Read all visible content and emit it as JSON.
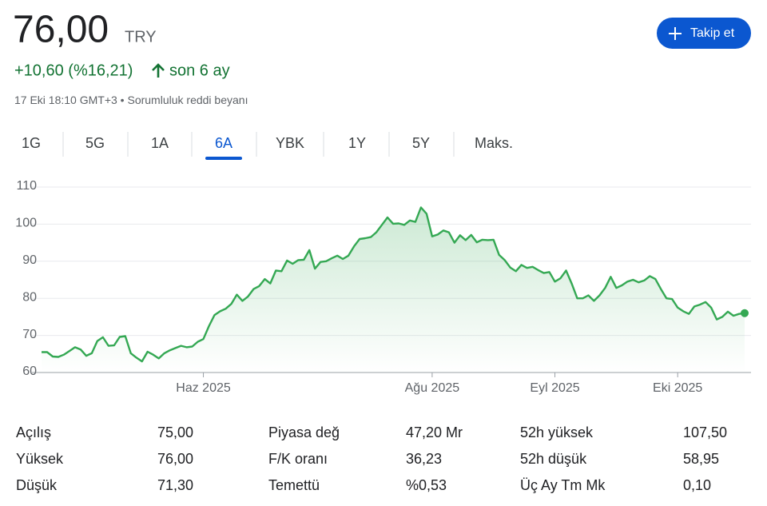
{
  "header": {
    "price": "76,00",
    "currency": "TRY",
    "change": "+10,60 (%16,21)",
    "period": "son 6 ay",
    "timestamp": "17 Eki 18:10 GMT+3",
    "disclaimer": "Sorumluluk reddi beyanı",
    "follow_button": "Takip et"
  },
  "tabs": {
    "items": [
      "1G",
      "5G",
      "1A",
      "6A",
      "YBK",
      "1Y",
      "5Y",
      "Maks."
    ],
    "selected": 3
  },
  "chart_data": {
    "type": "line",
    "color": "#34a853",
    "ylim": [
      60,
      110
    ],
    "yticks": [
      60,
      70,
      80,
      90,
      100,
      110
    ],
    "grid": true,
    "categories": [
      null,
      null,
      null,
      null,
      null,
      null,
      null,
      null,
      null,
      null,
      null,
      null,
      null,
      null,
      null,
      null,
      null,
      null,
      null,
      null,
      null,
      null,
      null,
      null,
      null,
      null,
      null,
      null,
      null,
      "Haz 2025",
      null,
      null,
      null,
      null,
      null,
      null,
      null,
      null,
      null,
      null,
      null,
      null,
      null,
      null,
      null,
      null,
      null,
      null,
      null,
      null,
      null,
      null,
      null,
      null,
      null,
      null,
      null,
      null,
      null,
      null,
      null,
      null,
      null,
      null,
      null,
      null,
      null,
      null,
      null,
      null,
      "Ağu 2025",
      null,
      null,
      null,
      null,
      null,
      null,
      null,
      null,
      null,
      null,
      null,
      null,
      null,
      null,
      null,
      null,
      null,
      null,
      null,
      null,
      null,
      "Eyl 2025",
      null,
      null,
      null,
      null,
      null,
      null,
      null,
      null,
      null,
      null,
      null,
      null,
      null,
      null,
      null,
      null,
      null,
      null,
      null,
      null,
      null,
      "Eki 2025",
      null,
      null,
      null,
      null,
      null,
      null,
      null,
      null,
      null,
      null,
      null,
      null
    ],
    "values": [
      65.5,
      65.5,
      64.3,
      64.2,
      64.8,
      65.8,
      66.8,
      66.2,
      64.5,
      65.2,
      68.5,
      69.5,
      67.2,
      67.3,
      69.6,
      69.8,
      65.2,
      64,
      63,
      65.6,
      64.8,
      63.8,
      65.2,
      66,
      66.6,
      67.2,
      66.8,
      67,
      68.3,
      69,
      72.5,
      75.5,
      76.5,
      77.2,
      78.5,
      81,
      79.3,
      80.5,
      82.5,
      83.3,
      85.2,
      84,
      87.5,
      87.3,
      90.2,
      89.3,
      90.3,
      90.4,
      93,
      88,
      89.8,
      90,
      90.8,
      91.5,
      90.6,
      91.5,
      94,
      96,
      96.2,
      96.5,
      97.8,
      99.8,
      101.8,
      100.1,
      100.2,
      99.8,
      101,
      100.6,
      104.5,
      102.8,
      96.7,
      97.2,
      98.3,
      97.8,
      95,
      97,
      95.7,
      97.1,
      95.1,
      95.8,
      95.7,
      95.8,
      91.7,
      90.3,
      88.3,
      87.3,
      89,
      88.2,
      88.5,
      87.6,
      86.8,
      87.1,
      84.5,
      85.4,
      87.5,
      84,
      80,
      80,
      80.8,
      79.3,
      80.8,
      82.8,
      85.8,
      82.8,
      83.5,
      84.5,
      85,
      84.3,
      84.8,
      86,
      85.2,
      82.5,
      80,
      79.8,
      77.5,
      76.5,
      75.8,
      77.8,
      78.3,
      79,
      77.5,
      74.3,
      75,
      76.4,
      75.3,
      75.8,
      76
    ]
  },
  "stats": {
    "rows": [
      [
        [
          "Açılış",
          "75,00"
        ],
        [
          "Piyasa değ",
          "47,20 Mr"
        ],
        [
          "52h yüksek",
          "107,50"
        ]
      ],
      [
        [
          "Yüksek",
          "76,00"
        ],
        [
          "F/K oranı",
          "36,23"
        ],
        [
          "52h düşük",
          "58,95"
        ]
      ],
      [
        [
          "Düşük",
          "71,30"
        ],
        [
          "Temettü",
          "%0,53"
        ],
        [
          "Üç Ay Tm Mk",
          "0,10"
        ]
      ]
    ]
  }
}
